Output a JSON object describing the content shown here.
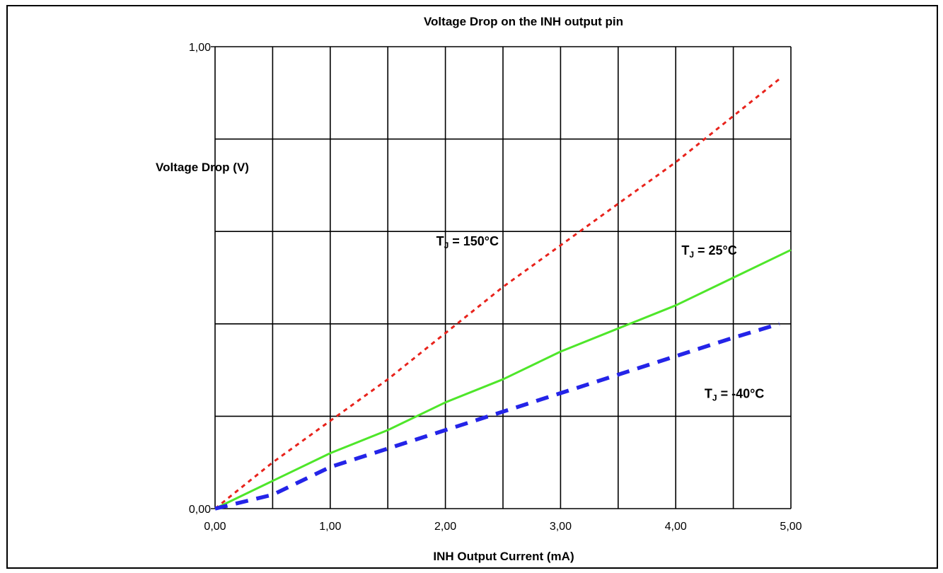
{
  "chart_data": {
    "type": "line",
    "title": "Voltage Drop on the INH output pin",
    "xlabel": "INH Output Current (mA)",
    "ylabel": "Voltage Drop (V)",
    "xlim": [
      0,
      5
    ],
    "ylim": [
      0,
      1
    ],
    "x_ticks": [
      0,
      1,
      2,
      3,
      4,
      5
    ],
    "x_tick_labels": [
      "0,00",
      "1,00",
      "2,00",
      "3,00",
      "4,00",
      "5,00"
    ],
    "y_ticks": [
      0,
      1
    ],
    "y_tick_labels": [
      "0,00",
      "1,00"
    ],
    "x_gridlines": [
      0.5,
      1,
      1.5,
      2,
      2.5,
      3,
      3.5,
      4,
      4.5,
      5
    ],
    "y_gridlines": [
      0.2,
      0.4,
      0.6,
      0.8,
      1.0
    ],
    "grid": true,
    "series": [
      {
        "name": "TJ = 150°C",
        "color": "#e8231c",
        "style": "dotted",
        "x": [
          0,
          0.5,
          1.0,
          1.5,
          2.0,
          2.5,
          3.0,
          3.5,
          4.0,
          4.5,
          4.9
        ],
        "y": [
          0,
          0.1,
          0.19,
          0.28,
          0.38,
          0.48,
          0.57,
          0.66,
          0.75,
          0.85,
          0.93
        ]
      },
      {
        "name": "TJ = 25°C",
        "color": "#4ee62a",
        "style": "solid",
        "x": [
          0,
          0.5,
          1.0,
          1.5,
          2.0,
          2.5,
          3.0,
          3.5,
          4.0,
          4.5,
          5.0
        ],
        "y": [
          0,
          0.06,
          0.12,
          0.17,
          0.23,
          0.28,
          0.34,
          0.39,
          0.44,
          0.5,
          0.56
        ]
      },
      {
        "name": "TJ = -40°C",
        "color": "#2424e8",
        "style": "dashed",
        "x": [
          0,
          0.5,
          1.0,
          1.5,
          2.0,
          2.5,
          3.0,
          3.5,
          4.0,
          4.5,
          4.9
        ],
        "y": [
          0,
          0.03,
          0.09,
          0.13,
          0.17,
          0.21,
          0.25,
          0.29,
          0.33,
          0.37,
          0.4
        ]
      }
    ],
    "annotations": [
      {
        "sub": "J",
        "rest": " = 150°C",
        "x": 1.92,
        "y": 0.57
      },
      {
        "sub": "J",
        "rest": " = 25°C",
        "x": 4.05,
        "y": 0.55
      },
      {
        "sub": "J",
        "rest": " = -40°C",
        "x": 4.25,
        "y": 0.24
      }
    ]
  }
}
